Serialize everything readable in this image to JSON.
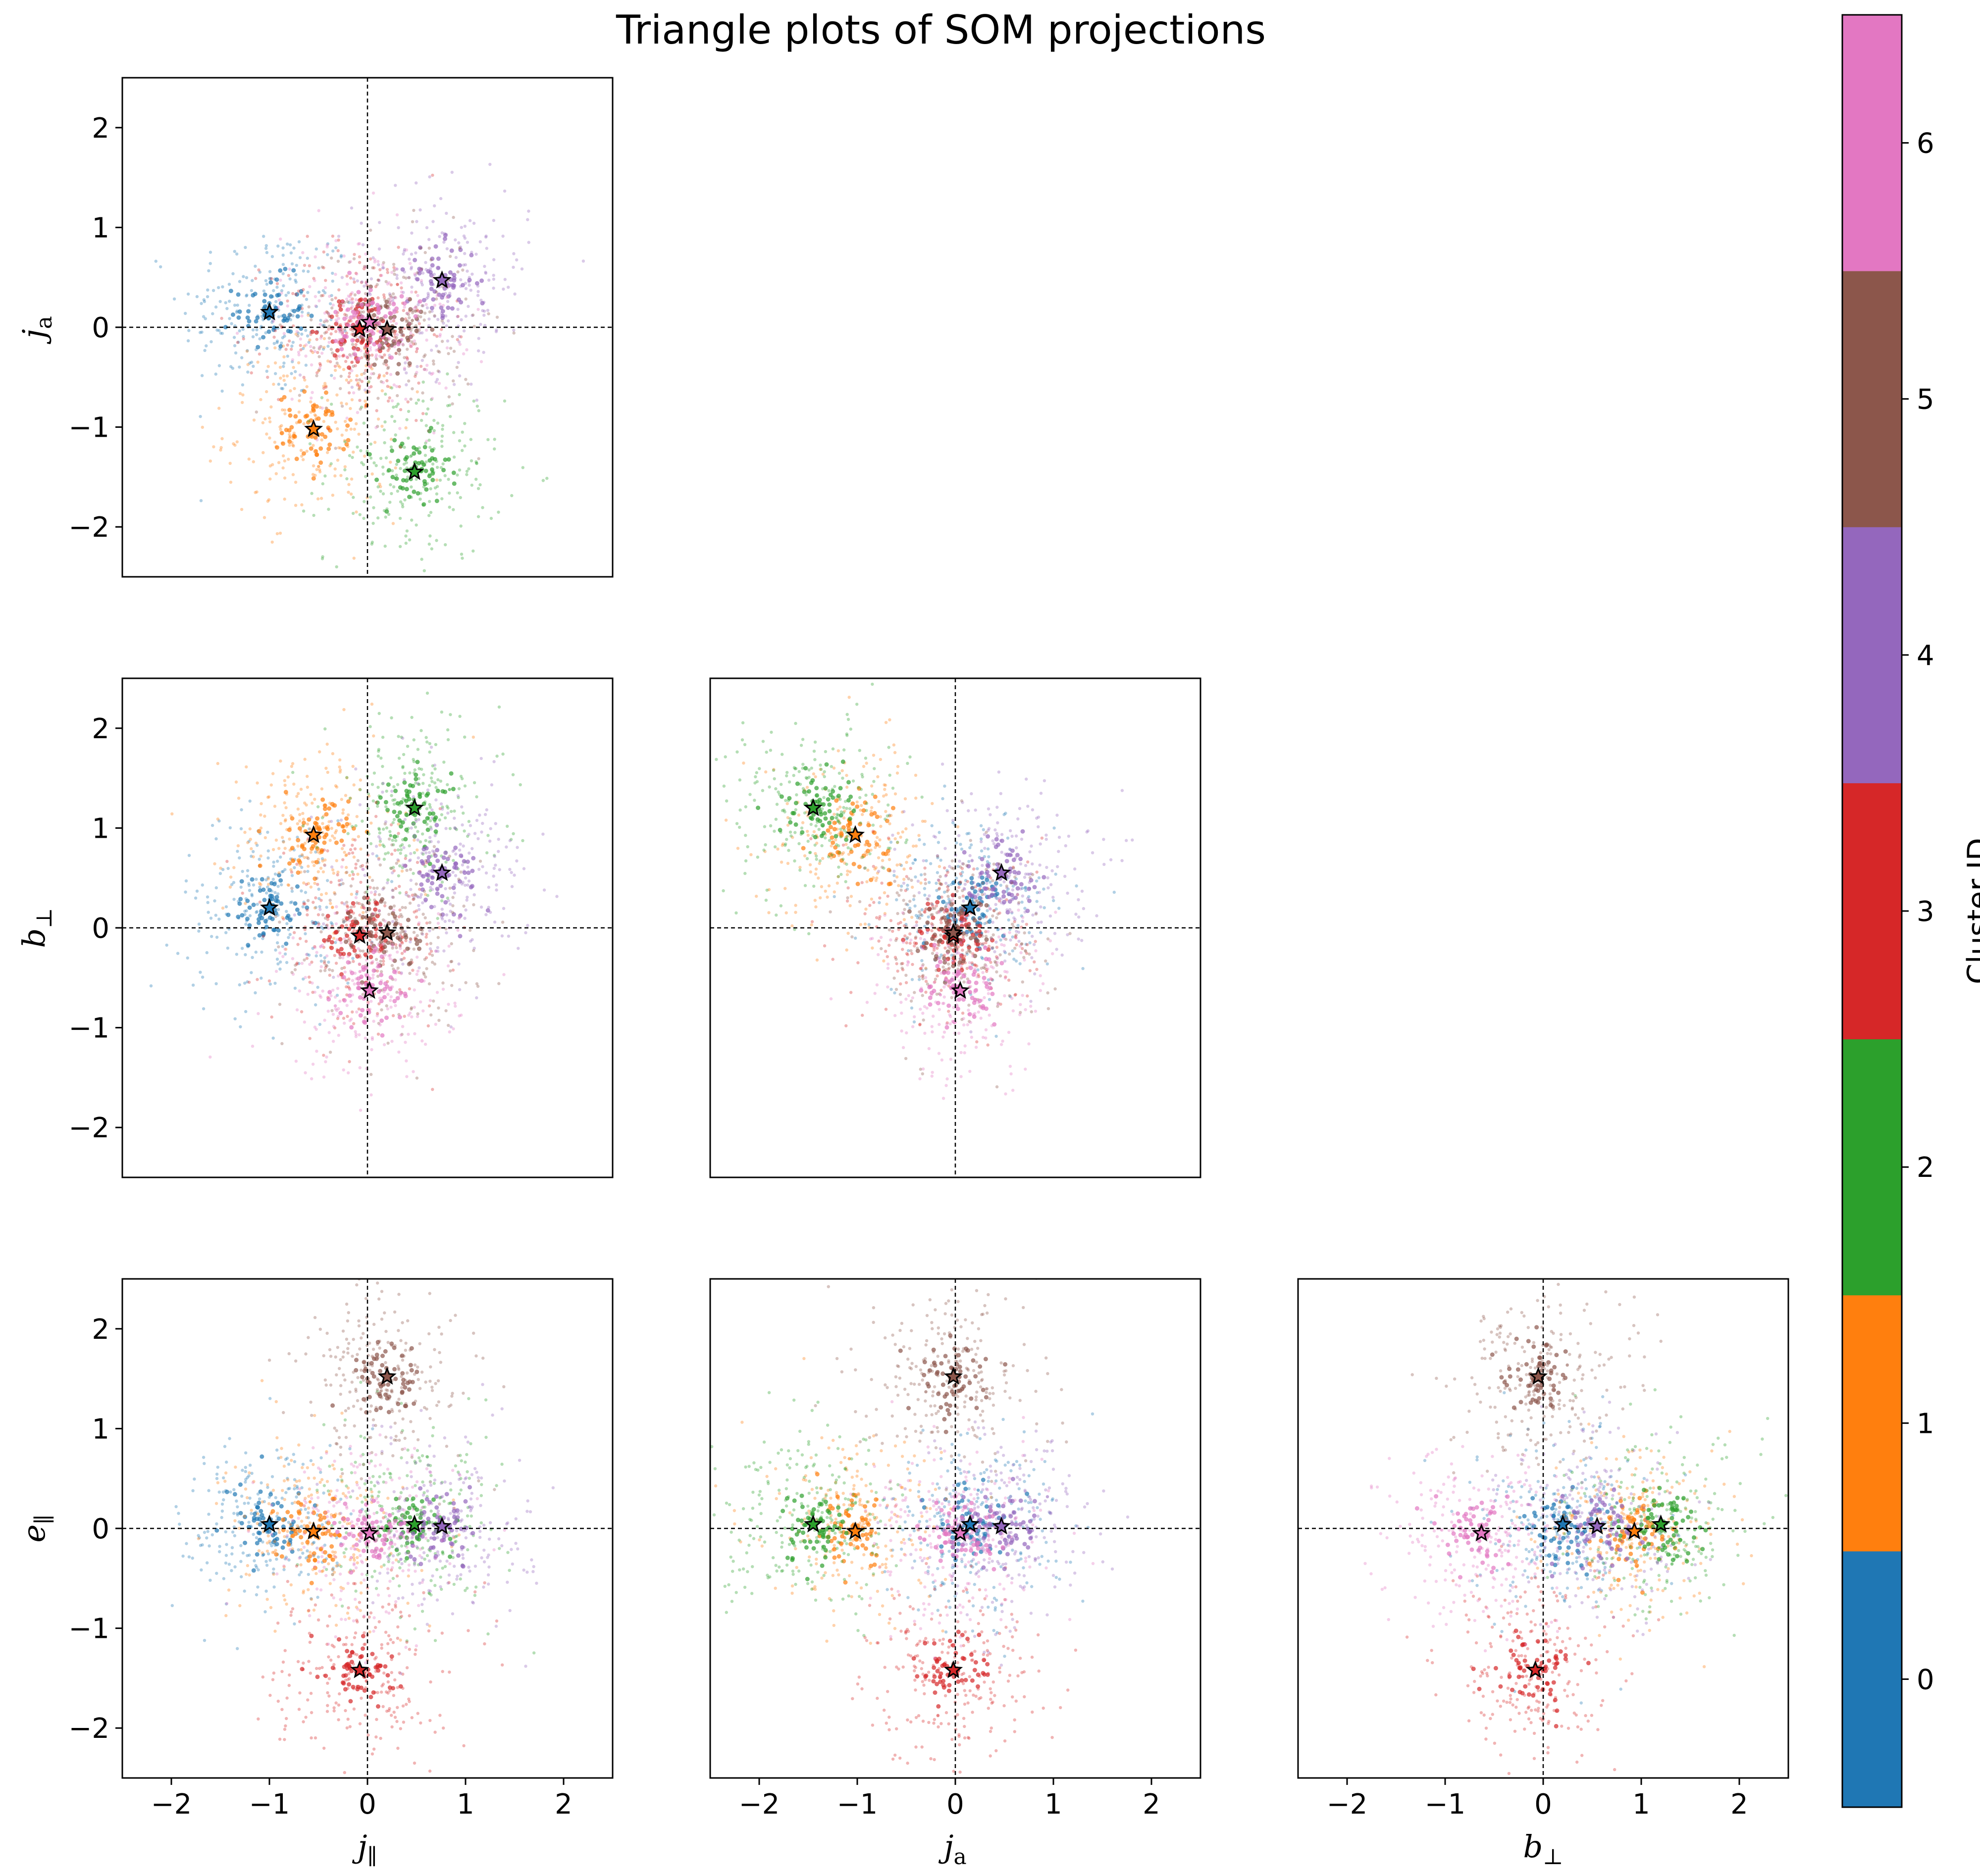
{
  "title": "Triangle plots of SOM projections",
  "colorbar": {
    "label": "Cluster ID",
    "ticks": [
      "0",
      "1",
      "2",
      "3",
      "4",
      "5",
      "6"
    ],
    "colors": [
      "#1f77b4",
      "#ff7f0e",
      "#2ca02c",
      "#d62728",
      "#9467bd",
      "#8c564b",
      "#e377c2"
    ]
  },
  "chart_data": {
    "type": "scatter",
    "variables": [
      "j_parallel",
      "j_a",
      "b_perp",
      "e_parallel"
    ],
    "axis_range": [
      -2.5,
      2.5
    ],
    "ticks": [
      -2,
      -1,
      0,
      1,
      2
    ],
    "tick_labels": [
      "−2",
      "−1",
      "0",
      "1",
      "2"
    ],
    "grid": false,
    "reference_lines": [
      0,
      0
    ],
    "labels": {
      "j_parallel": {
        "main": "j",
        "sub": "∥"
      },
      "j_a": {
        "main": "j",
        "sub": "a"
      },
      "b_perp": {
        "main": "b",
        "sub": "⊥"
      },
      "e_parallel": {
        "main": "e",
        "sub": "∥"
      }
    },
    "cluster_centroids": [
      {
        "cluster": 0,
        "j_parallel": -1.0,
        "j_a": 0.15,
        "b_perp": 0.2,
        "e_parallel": 0.04
      },
      {
        "cluster": 1,
        "j_parallel": -0.55,
        "j_a": -1.02,
        "b_perp": 0.93,
        "e_parallel": -0.03
      },
      {
        "cluster": 2,
        "j_parallel": 0.48,
        "j_a": -1.45,
        "b_perp": 1.2,
        "e_parallel": 0.04
      },
      {
        "cluster": 3,
        "j_parallel": -0.08,
        "j_a": -0.02,
        "b_perp": -0.08,
        "e_parallel": -1.42
      },
      {
        "cluster": 4,
        "j_parallel": 0.76,
        "j_a": 0.47,
        "b_perp": 0.55,
        "e_parallel": 0.02
      },
      {
        "cluster": 5,
        "j_parallel": 0.2,
        "j_a": -0.02,
        "b_perp": -0.05,
        "e_parallel": 1.52
      },
      {
        "cluster": 6,
        "j_parallel": 0.02,
        "j_a": 0.05,
        "b_perp": -0.63,
        "e_parallel": -0.05
      }
    ],
    "panels": [
      {
        "row": 0,
        "col": 0,
        "x": "j_parallel",
        "y": "j_a"
      },
      {
        "row": 1,
        "col": 0,
        "x": "j_parallel",
        "y": "b_perp"
      },
      {
        "row": 1,
        "col": 1,
        "x": "j_a",
        "y": "b_perp"
      },
      {
        "row": 2,
        "col": 0,
        "x": "j_parallel",
        "y": "e_parallel"
      },
      {
        "row": 2,
        "col": 1,
        "x": "j_a",
        "y": "e_parallel"
      },
      {
        "row": 2,
        "col": 2,
        "x": "b_perp",
        "y": "e_parallel"
      }
    ]
  }
}
